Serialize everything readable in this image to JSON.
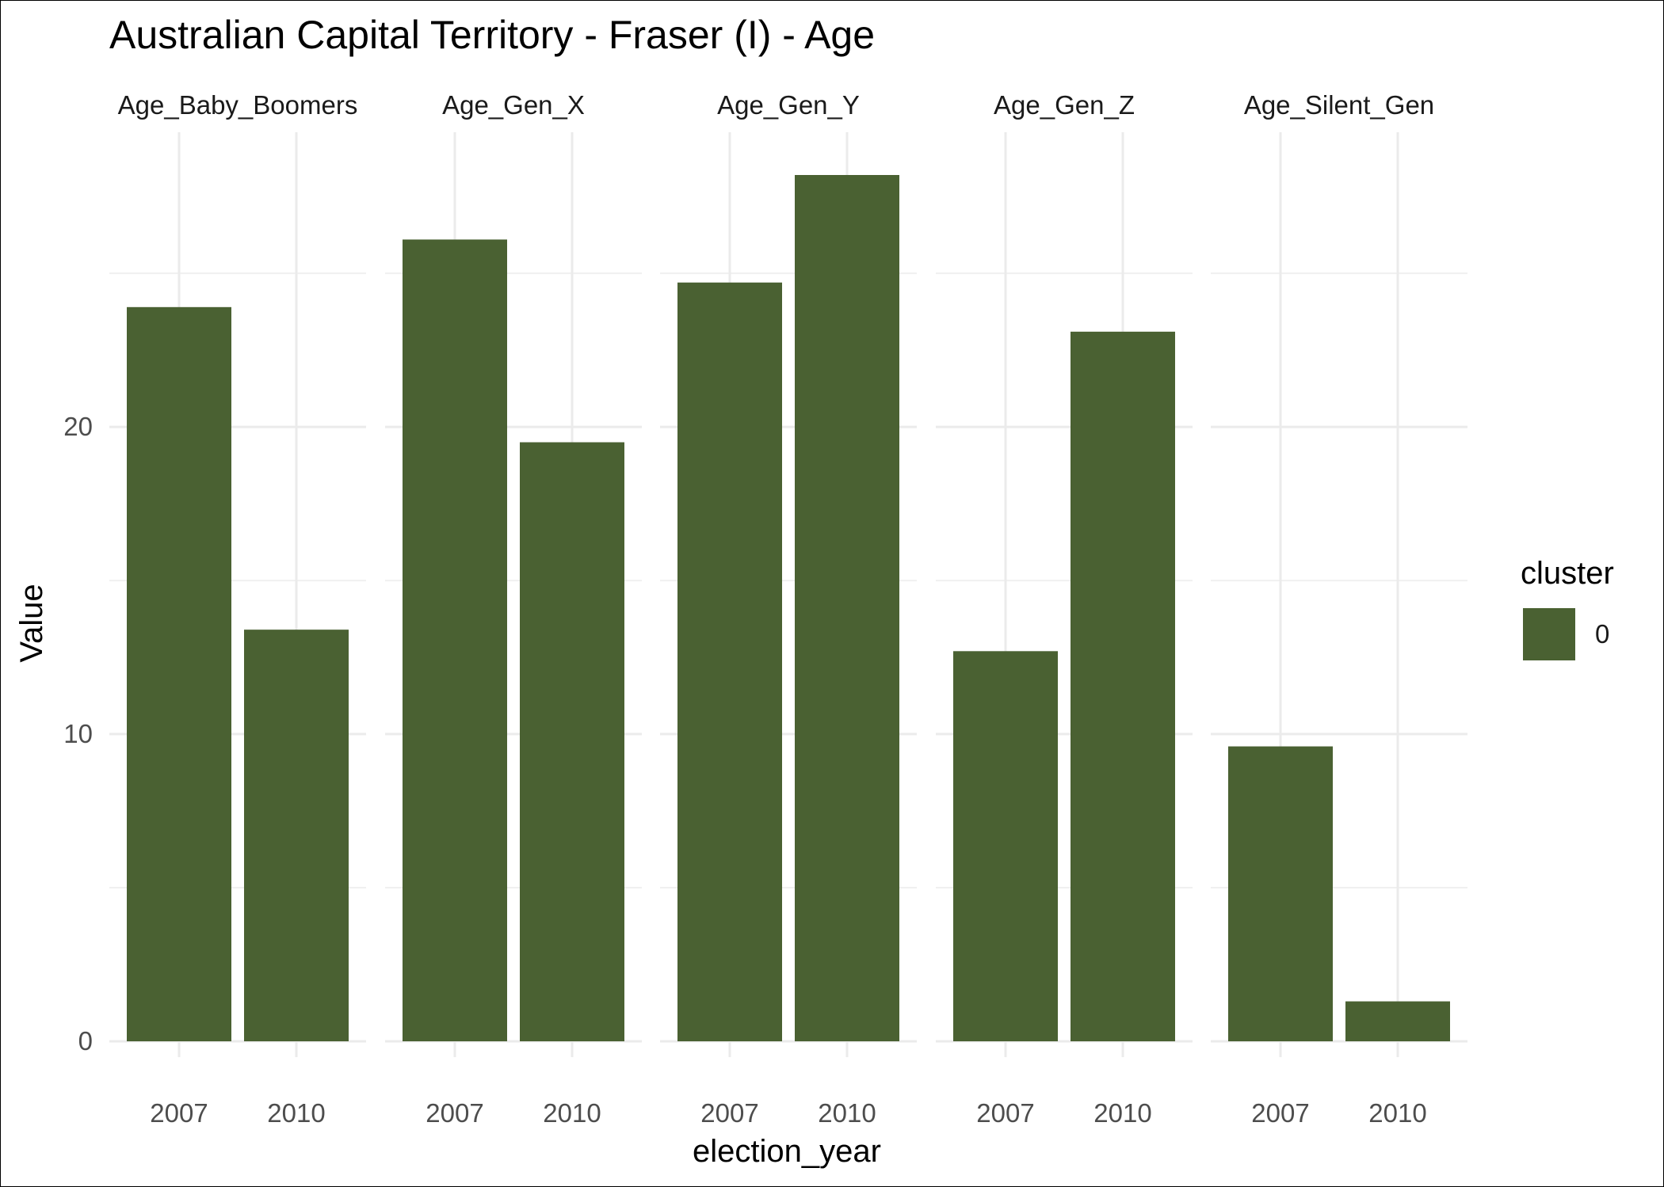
{
  "chart_data": {
    "type": "bar",
    "title": "Australian Capital Territory - Fraser (I) - Age",
    "xlabel": "election_year",
    "ylabel": "Value",
    "categories": [
      "2007",
      "2010"
    ],
    "facets": [
      {
        "label": "Age_Baby_Boomers",
        "values": [
          23.9,
          13.4
        ]
      },
      {
        "label": "Age_Gen_X",
        "values": [
          26.1,
          19.5
        ]
      },
      {
        "label": "Age_Gen_Y",
        "values": [
          24.7,
          28.2
        ]
      },
      {
        "label": "Age_Gen_Z",
        "values": [
          12.7,
          23.1
        ]
      },
      {
        "label": "Age_Silent_Gen",
        "values": [
          9.6,
          1.3
        ]
      }
    ],
    "ylim": [
      0,
      28.2
    ],
    "yticks": [
      0,
      10,
      20
    ],
    "grid": true,
    "legend": {
      "title": "cluster",
      "entries": [
        {
          "label": "0",
          "color": "#4a6132"
        }
      ],
      "position": "right"
    },
    "bar_color": "#4a6132"
  }
}
